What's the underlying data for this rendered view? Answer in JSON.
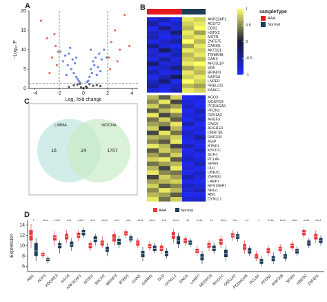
{
  "chart_data": [
    {
      "type": "scatter",
      "panel": "A",
      "xlabel": "Log₂ fold change",
      "ylabel": "−Log₁₀ P",
      "xlim": [
        -4.5,
        4.5
      ],
      "xticks": [
        -4,
        -2,
        0,
        2,
        4
      ],
      "ylim": [
        0,
        20
      ],
      "yticks": [
        0,
        5,
        10,
        15,
        20
      ],
      "vlines": [
        -2,
        2
      ],
      "vline_color": "#2e8b57",
      "hline": 1.3,
      "hline_color": "#777777",
      "series": [
        {
          "color": "#333333",
          "x": [
            -1.2,
            -0.8,
            -0.5,
            -0.2,
            0,
            0.2,
            0.5,
            0.8,
            1.1,
            -0.3,
            0.3,
            1.4
          ],
          "y": [
            0.4,
            0.8,
            1.0,
            0.3,
            0.1,
            0.5,
            1.1,
            0.7,
            0.9,
            1.2,
            0.2,
            0.6
          ]
        },
        {
          "color": "#4f6fe0",
          "x": [
            -1.9,
            -1.7,
            -1.5,
            -1.3,
            -1.2,
            -1.0,
            -0.9,
            -0.8,
            -0.7,
            -0.6,
            -0.5,
            -0.4,
            -0.6,
            -1.1,
            -1.4,
            0.4,
            0.5,
            0.6,
            0.7,
            0.8,
            0.9,
            1.0,
            1.2,
            1.3,
            1.5,
            1.7,
            1.9,
            0.6,
            1.1,
            1.4,
            -0.3,
            0.3
          ],
          "y": [
            9.5,
            7,
            8.5,
            6,
            9,
            5,
            7.5,
            4,
            6.5,
            3,
            2.5,
            2,
            8,
            10.5,
            3.5,
            2,
            3,
            5,
            4,
            7,
            6,
            8,
            5.5,
            9,
            7.5,
            10,
            8,
            10,
            3.5,
            4.5,
            1.6,
            1.7
          ]
        },
        {
          "color": "#e0563f",
          "x": [
            -3.5,
            -3.0,
            -2.6,
            -2.3,
            -2.2,
            -2.8,
            -2.1,
            2.1,
            2.3,
            2.6,
            3.0,
            3.4,
            2.2,
            2.8,
            -2.4,
            3.8
          ],
          "y": [
            17.5,
            13,
            8,
            11,
            6,
            4,
            9.5,
            8,
            12,
            15,
            10,
            19,
            5,
            7,
            14,
            11
          ]
        }
      ]
    },
    {
      "type": "heatmap",
      "panel": "B",
      "legend_title": "sampleType",
      "sample_types": [
        {
          "name": "AAA",
          "color": "#e41a1c"
        },
        {
          "name": "Normal",
          "color": "#1f3b57"
        }
      ],
      "columns": [
        "AAA",
        "AAA",
        "AAA",
        "Normal",
        "Normal"
      ],
      "zlim": [
        -1,
        1
      ],
      "zticks": [
        1,
        0.5,
        0,
        -0.5,
        -1
      ],
      "colors": [
        "#1f2bff",
        "#16163a",
        "#ffff66"
      ],
      "row_groups": [
        {
          "rows": [
            "ANP32AP1",
            "ACOT2",
            "CBX2",
            "HSFX2",
            "MSTN",
            "ZNF575",
            "CARM1",
            "AKT1S1",
            "TRIM64B",
            "CANX",
            "AFG3L1P",
            "XPA",
            "BRINP3",
            "NAPSA",
            "LNPEP",
            "PRELID1",
            "KAAG1"
          ],
          "values": [
            [
              -0.8,
              -0.6,
              -0.9,
              0.9,
              0.8
            ],
            [
              -0.5,
              -0.9,
              -0.7,
              0.8,
              0.9
            ],
            [
              -0.9,
              -0.4,
              -0.8,
              0.7,
              1.0
            ],
            [
              -0.7,
              -0.8,
              -0.3,
              0.9,
              0.6
            ],
            [
              -0.6,
              -0.9,
              -0.8,
              0.8,
              0.9
            ],
            [
              -0.9,
              -0.7,
              -0.5,
              1.0,
              0.7
            ],
            [
              -0.4,
              -0.8,
              -0.9,
              0.6,
              0.9
            ],
            [
              -0.8,
              -0.2,
              -0.7,
              0.9,
              0.8
            ],
            [
              -0.7,
              -0.9,
              -0.6,
              0.7,
              0.9
            ],
            [
              -0.9,
              -0.5,
              -0.8,
              0.8,
              0.7
            ],
            [
              -0.3,
              -0.8,
              -0.7,
              0.9,
              1.0
            ],
            [
              -0.8,
              -0.7,
              -0.4,
              0.6,
              0.8
            ],
            [
              -0.6,
              -0.9,
              -0.8,
              0.9,
              0.7
            ],
            [
              -0.9,
              -0.6,
              -0.2,
              0.8,
              0.9
            ],
            [
              -0.7,
              -0.3,
              -0.9,
              1.0,
              0.8
            ],
            [
              -0.5,
              -0.8,
              -0.7,
              0.7,
              0.6
            ],
            [
              -0.8,
              -0.9,
              -0.6,
              0.9,
              0.8
            ]
          ]
        },
        {
          "rows": [
            "AGO3",
            "MOSPD3",
            "PCDHGA5",
            "PFDN1",
            "OR51A2",
            "ARGFX",
            "GNG5",
            "ADGRE3",
            "DMRTB1",
            "RNF208",
            "ASIP",
            "BTBD1",
            "MYO1C",
            "ACP4",
            "PCLAF",
            "SPRN",
            "DLD",
            "UBE3C",
            "ZNF831",
            "LARP7",
            "RPS19BP1",
            "NRG1",
            "ABI1",
            "DYNLL1"
          ],
          "values": [
            [
              0.7,
              0.3,
              0.8,
              -0.9,
              -0.8
            ],
            [
              0.5,
              0.9,
              0.2,
              -0.8,
              -0.9
            ],
            [
              0.8,
              0.4,
              0.6,
              -0.7,
              -0.9
            ],
            [
              0.3,
              0.7,
              0.9,
              -0.9,
              -0.6
            ],
            [
              0.9,
              0.2,
              0.5,
              -0.8,
              -0.8
            ],
            [
              0.4,
              0.8,
              0.3,
              -0.9,
              -0.7
            ],
            [
              0.6,
              0.5,
              0.9,
              -0.6,
              -0.9
            ],
            [
              0.8,
              0.1,
              0.7,
              -0.9,
              -0.8
            ],
            [
              0.2,
              0.9,
              0.4,
              -0.7,
              -0.9
            ],
            [
              0.7,
              0.6,
              0.8,
              -0.8,
              -0.5
            ],
            [
              0.5,
              0.3,
              0.9,
              -0.9,
              -0.8
            ],
            [
              0.9,
              0.7,
              0.2,
              -0.6,
              -0.9
            ],
            [
              0.3,
              0.8,
              0.6,
              -0.9,
              -0.7
            ],
            [
              0.6,
              0.4,
              0.8,
              -0.8,
              -0.9
            ],
            [
              0.8,
              0.9,
              0.3,
              -0.7,
              -0.8
            ],
            [
              0.4,
              0.6,
              0.7,
              -0.9,
              -0.6
            ],
            [
              0.7,
              0.2,
              0.9,
              -0.8,
              -0.9
            ],
            [
              0.9,
              0.5,
              0.4,
              -0.9,
              -0.7
            ],
            [
              0.2,
              0.8,
              0.6,
              -0.6,
              -0.8
            ],
            [
              0.6,
              0.7,
              0.8,
              -0.9,
              -0.9
            ],
            [
              0.8,
              0.3,
              0.5,
              -0.7,
              -0.8
            ],
            [
              0.5,
              0.9,
              0.7,
              -0.8,
              -0.6
            ],
            [
              0.7,
              0.6,
              0.3,
              -0.9,
              -0.9
            ],
            [
              0.9,
              0.4,
              0.8,
              -0.8,
              -0.7
            ]
          ]
        }
      ]
    },
    {
      "type": "venn",
      "panel": "C",
      "sets": [
        "LIMMA",
        "WGCNA"
      ],
      "values": [
        16,
        24,
        1707
      ],
      "colors": [
        "#bfe6e0",
        "#c9ebc4"
      ]
    },
    {
      "type": "box",
      "panel": "D",
      "ylabel": "Expression",
      "ylim": [
        5,
        15
      ],
      "yticks": [
        6,
        8,
        10,
        12,
        14
      ],
      "categories": [
        "ABI1",
        "ACP4",
        "ADGRE3",
        "AGO3",
        "ANP32AP1",
        "AP3D1",
        "BACH2",
        "BRINP3",
        "BTBD1",
        "CANX",
        "CARM1",
        "DLD",
        "DYNLL1",
        "GNG5",
        "LARP7",
        "MOSPD3",
        "MYO1C",
        "OR51A2",
        "PCDHGA5",
        "PCLAF",
        "PFDN1",
        "RNF208",
        "SPRN",
        "UBE3C",
        "ZNF831"
      ],
      "annotations": [
        "*",
        "****",
        "****",
        "***",
        "****",
        "***",
        "****",
        "***",
        "***",
        "****",
        "****",
        "***",
        "****",
        "**",
        "****",
        "**",
        "****",
        "***",
        "**",
        "*",
        "****",
        "****",
        "****",
        "****",
        "****"
      ],
      "series": [
        {
          "name": "AAA",
          "color": "#e8383d",
          "values": [
            [
              9.5,
              11,
              12,
              13,
              14.2
            ],
            [
              7.5,
              8,
              8.3,
              8.6,
              9
            ],
            [
              10,
              11,
              11.6,
              12,
              12.8
            ],
            [
              10.5,
              11.2,
              11.8,
              12.3,
              13
            ],
            [
              10.8,
              11.5,
              12,
              12.5,
              13
            ],
            [
              9,
              9.5,
              10,
              10.5,
              11
            ],
            [
              9.5,
              10,
              10.5,
              11,
              11.8
            ],
            [
              10,
              10.8,
              11.5,
              12.2,
              12.8
            ],
            [
              11.5,
              12,
              12.4,
              12.8,
              13.2
            ],
            [
              9.5,
              10,
              10.5,
              11,
              11.5
            ],
            [
              9,
              9.5,
              9.9,
              10.3,
              10.8
            ],
            [
              8.5,
              9,
              9.5,
              10,
              10.5
            ],
            [
              10.5,
              11.3,
              12,
              12.6,
              13.2
            ],
            [
              10,
              10.5,
              11,
              11.4,
              11.8
            ],
            [
              8,
              8.6,
              9,
              9.4,
              10
            ],
            [
              9,
              9.6,
              10,
              10.5,
              11
            ],
            [
              9.5,
              10.2,
              10.8,
              11.3,
              12
            ],
            [
              11,
              11.6,
              12,
              12.4,
              13
            ],
            [
              8.5,
              9.2,
              9.8,
              10.3,
              11
            ],
            [
              7,
              7.5,
              8,
              8.4,
              9
            ],
            [
              8,
              8.6,
              9,
              9.5,
              10
            ],
            [
              8.5,
              9,
              9.4,
              9.8,
              10.3
            ],
            [
              9,
              9.5,
              10,
              10.4,
              10.8
            ],
            [
              11.5,
              12,
              12.5,
              13,
              13.5
            ],
            [
              10.5,
              11.2,
              11.8,
              12.3,
              13
            ]
          ]
        },
        {
          "name": "Normal",
          "color": "#1f3b57",
          "values": [
            [
              7,
              8,
              9,
              10.5,
              11.5
            ],
            [
              6.5,
              7,
              7.3,
              7.6,
              8
            ],
            [
              8.5,
              9.5,
              10,
              10.5,
              11
            ],
            [
              9,
              9.8,
              10.2,
              10.8,
              11.4
            ],
            [
              11.5,
              12,
              12.5,
              13,
              13.5
            ],
            [
              10,
              10.7,
              11.2,
              11.8,
              12.3
            ],
            [
              8,
              8.8,
              9.3,
              9.8,
              10.5
            ],
            [
              9.5,
              10.2,
              10.8,
              11.3,
              12
            ],
            [
              10.5,
              11,
              11.4,
              11.8,
              12.2
            ],
            [
              7,
              7.8,
              8.5,
              9,
              9.8
            ],
            [
              8.5,
              9,
              9.5,
              10,
              10.5
            ],
            [
              7.5,
              8,
              8.5,
              9,
              9.5
            ],
            [
              9.5,
              10.3,
              11,
              11.8,
              12.5
            ],
            [
              9.8,
              10.2,
              10.6,
              11,
              11.4
            ],
            [
              6.5,
              7.2,
              7.8,
              8.4,
              9
            ],
            [
              8.5,
              9,
              9.5,
              10,
              10.6
            ],
            [
              7,
              7.8,
              8.5,
              9.2,
              10
            ],
            [
              10.8,
              11.3,
              11.8,
              12.2,
              12.7
            ],
            [
              8,
              8.5,
              9,
              9.5,
              10
            ],
            [
              6,
              6.5,
              7,
              7.4,
              8
            ],
            [
              6.5,
              7,
              7.5,
              8,
              8.7
            ],
            [
              7,
              7.5,
              8,
              8.4,
              9
            ],
            [
              8,
              8.5,
              9,
              9.4,
              9.9
            ],
            [
              9.5,
              10,
              10.5,
              11,
              11.5
            ],
            [
              10,
              10.5,
              11,
              11.5,
              12
            ]
          ]
        }
      ]
    }
  ]
}
